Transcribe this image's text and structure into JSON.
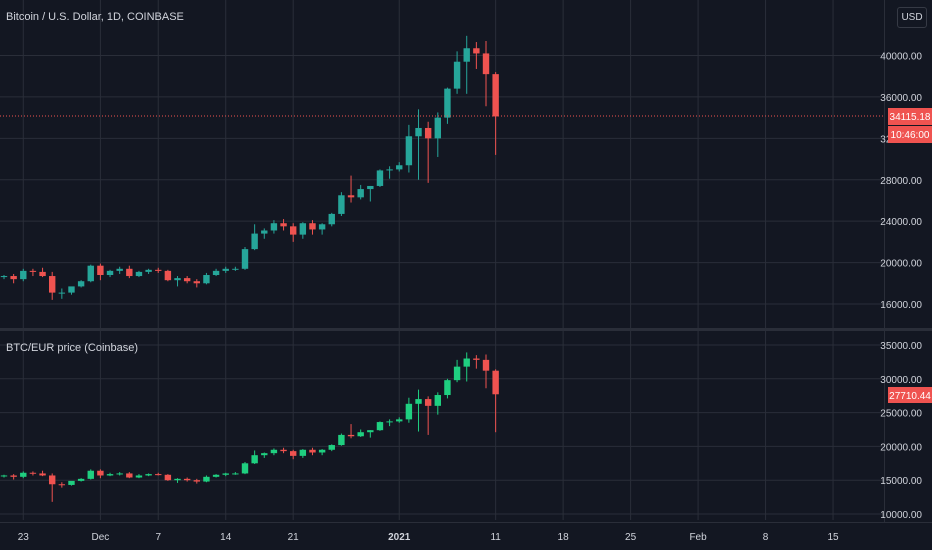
{
  "top_title": "Bitcoin / U.S. Dollar, 1D, COINBASE",
  "bottom_title": "BTC/EUR price (Coinbase)",
  "currency_button": "USD",
  "price_tag": "34115.18",
  "countdown_tag": "10:46:00",
  "eur_price_tag": "27710.44",
  "x_axis_labels": [
    "23",
    "Dec",
    "7",
    "14",
    "21",
    "2021",
    "11",
    "18",
    "25",
    "Feb",
    "8",
    "15"
  ],
  "colors": {
    "up": "#26a69a",
    "down": "#ef5350",
    "up_eur": "#1fcf80",
    "bg": "#131722",
    "grid": "#2a2e39",
    "text": "#d1d4dc"
  },
  "chart_data": [
    {
      "type": "candlestick",
      "title": "Bitcoin / U.S. Dollar, 1D, COINBASE",
      "ylim": [
        14000,
        44000
      ],
      "y_ticks": [
        16000,
        20000,
        24000,
        28000,
        32000,
        36000,
        40000
      ],
      "y_tick_labels": [
        "16000.00",
        "20000.00",
        "24000.00",
        "28000.00",
        "32000.00",
        "36000.00",
        "40000.00"
      ],
      "last_price": 34115.18,
      "x_range": [
        "2020-11-21",
        "2021-02-19"
      ],
      "dates": [
        "2020-11-21",
        "2020-11-22",
        "2020-11-23",
        "2020-11-24",
        "2020-11-25",
        "2020-11-26",
        "2020-11-27",
        "2020-11-28",
        "2020-11-29",
        "2020-11-30",
        "2020-12-01",
        "2020-12-02",
        "2020-12-03",
        "2020-12-04",
        "2020-12-05",
        "2020-12-06",
        "2020-12-07",
        "2020-12-08",
        "2020-12-09",
        "2020-12-10",
        "2020-12-11",
        "2020-12-12",
        "2020-12-13",
        "2020-12-14",
        "2020-12-15",
        "2020-12-16",
        "2020-12-17",
        "2020-12-18",
        "2020-12-19",
        "2020-12-20",
        "2020-12-21",
        "2020-12-22",
        "2020-12-23",
        "2020-12-24",
        "2020-12-25",
        "2020-12-26",
        "2020-12-27",
        "2020-12-28",
        "2020-12-29",
        "2020-12-30",
        "2020-12-31",
        "2021-01-01",
        "2021-01-02",
        "2021-01-03",
        "2021-01-04",
        "2021-01-05",
        "2021-01-06",
        "2021-01-07",
        "2021-01-08",
        "2021-01-09",
        "2021-01-10",
        "2021-01-11"
      ],
      "open": [
        18600,
        18700,
        18400,
        19200,
        19100,
        18700,
        17100,
        17100,
        17700,
        18200,
        19700,
        18800,
        19200,
        19400,
        18700,
        19100,
        19300,
        19200,
        18300,
        18500,
        18200,
        18000,
        18800,
        19200,
        19400,
        19400,
        21300,
        22800,
        23100,
        23800,
        23500,
        22700,
        23800,
        23200,
        23700,
        24700,
        26500,
        26300,
        27100,
        27400,
        28900,
        29000,
        29400,
        32200,
        33000,
        32000,
        34000,
        36800,
        39400,
        40700,
        40200,
        38200
      ],
      "high": [
        18800,
        18900,
        19400,
        19400,
        19500,
        19100,
        17500,
        17600,
        18300,
        19800,
        19900,
        19300,
        19600,
        19700,
        19200,
        19400,
        19500,
        19300,
        18700,
        18700,
        18400,
        19000,
        19400,
        19600,
        19600,
        21500,
        23700,
        23300,
        24100,
        24200,
        23800,
        23900,
        24100,
        23800,
        24800,
        26800,
        28400,
        27500,
        27400,
        29000,
        29300,
        29700,
        33300,
        34800,
        33600,
        34500,
        36900,
        40400,
        41900,
        41300,
        41400,
        38400
      ],
      "low": [
        18400,
        18000,
        18200,
        18700,
        18600,
        16400,
        16500,
        16900,
        17600,
        18100,
        18300,
        18600,
        18900,
        18500,
        18600,
        18900,
        19000,
        18200,
        17700,
        18000,
        17600,
        17900,
        18700,
        19000,
        19200,
        19300,
        21200,
        22300,
        22800,
        23100,
        22000,
        22300,
        22700,
        22700,
        23500,
        24500,
        25800,
        26100,
        25900,
        27300,
        28100,
        28800,
        28700,
        28000,
        27700,
        30200,
        33400,
        36300,
        36300,
        38700,
        35100,
        30400
      ],
      "close": [
        18700,
        18400,
        19200,
        19100,
        18700,
        17100,
        17100,
        17700,
        18200,
        19700,
        18800,
        19200,
        19400,
        18700,
        19100,
        19300,
        19200,
        18300,
        18500,
        18200,
        18000,
        18800,
        19200,
        19400,
        19400,
        21300,
        22800,
        23100,
        23800,
        23500,
        22700,
        23800,
        23200,
        23700,
        24700,
        26500,
        26300,
        27100,
        27400,
        28900,
        29000,
        29400,
        32200,
        33000,
        32000,
        34000,
        36800,
        39400,
        40700,
        40200,
        38200,
        34115
      ]
    },
    {
      "type": "candlestick",
      "title": "BTC/EUR price (Coinbase)",
      "ylim": [
        9000,
        36000
      ],
      "y_ticks": [
        10000,
        15000,
        20000,
        25000,
        30000,
        35000
      ],
      "y_tick_labels": [
        "10000.00",
        "15000.00",
        "20000.00",
        "25000.00",
        "30000.00",
        "35000.00"
      ],
      "last_price": 27710.44,
      "x_range": [
        "2020-11-21",
        "2021-02-19"
      ],
      "dates": [
        "2020-11-21",
        "2020-11-22",
        "2020-11-23",
        "2020-11-24",
        "2020-11-25",
        "2020-11-26",
        "2020-11-27",
        "2020-11-28",
        "2020-11-29",
        "2020-11-30",
        "2020-12-01",
        "2020-12-02",
        "2020-12-03",
        "2020-12-04",
        "2020-12-05",
        "2020-12-06",
        "2020-12-07",
        "2020-12-08",
        "2020-12-09",
        "2020-12-10",
        "2020-12-11",
        "2020-12-12",
        "2020-12-13",
        "2020-12-14",
        "2020-12-15",
        "2020-12-16",
        "2020-12-17",
        "2020-12-18",
        "2020-12-19",
        "2020-12-20",
        "2020-12-21",
        "2020-12-22",
        "2020-12-23",
        "2020-12-24",
        "2020-12-25",
        "2020-12-26",
        "2020-12-27",
        "2020-12-28",
        "2020-12-29",
        "2020-12-30",
        "2020-12-31",
        "2021-01-01",
        "2021-01-02",
        "2021-01-03",
        "2021-01-04",
        "2021-01-05",
        "2021-01-06",
        "2021-01-07",
        "2021-01-08",
        "2021-01-09",
        "2021-01-10",
        "2021-01-11"
      ],
      "open": [
        15600,
        15700,
        15500,
        16100,
        16000,
        15700,
        14400,
        14300,
        14900,
        15200,
        16400,
        15700,
        15900,
        16000,
        15400,
        15700,
        15900,
        15800,
        15000,
        15200,
        15000,
        14800,
        15500,
        15800,
        16000,
        16000,
        17500,
        18700,
        19000,
        19500,
        19300,
        18600,
        19500,
        19100,
        19500,
        20200,
        21700,
        21500,
        22100,
        22400,
        23600,
        23700,
        24000,
        26300,
        27000,
        26000,
        27600,
        29800,
        31800,
        33000,
        32800,
        31200
      ],
      "high": [
        15800,
        15900,
        16300,
        16300,
        16400,
        16000,
        14700,
        14800,
        15300,
        16600,
        16600,
        16100,
        16200,
        16200,
        15900,
        16000,
        16100,
        15900,
        15300,
        15400,
        15200,
        15700,
        15900,
        16100,
        16200,
        17700,
        19400,
        19100,
        19700,
        19800,
        19500,
        19600,
        19800,
        19600,
        20300,
        21900,
        23300,
        22500,
        22400,
        23700,
        24000,
        24300,
        27200,
        28400,
        27400,
        28000,
        30000,
        32800,
        33900,
        33500,
        33600,
        31400
      ],
      "low": [
        15400,
        15100,
        15300,
        15700,
        15600,
        11800,
        13900,
        14200,
        14800,
        15100,
        15300,
        15600,
        15700,
        15300,
        15300,
        15600,
        15700,
        14900,
        14600,
        14800,
        14500,
        14700,
        15400,
        15600,
        15800,
        15900,
        17400,
        18300,
        18700,
        19000,
        18100,
        18300,
        18700,
        18700,
        19300,
        20100,
        21200,
        21400,
        21300,
        22300,
        23000,
        23500,
        23500,
        22200,
        21700,
        24700,
        27100,
        29500,
        29600,
        31500,
        28600,
        22100
      ],
      "close": [
        15700,
        15500,
        16100,
        16000,
        15700,
        14400,
        14300,
        14900,
        15200,
        16400,
        15700,
        15900,
        16000,
        15400,
        15700,
        15900,
        15800,
        15000,
        15200,
        15000,
        14800,
        15500,
        15800,
        16000,
        16000,
        17500,
        18700,
        19000,
        19500,
        19300,
        18600,
        19500,
        19100,
        19500,
        20200,
        21700,
        21500,
        22100,
        22400,
        23600,
        23700,
        24000,
        26300,
        27000,
        26000,
        27600,
        29800,
        31800,
        33000,
        32800,
        31200,
        27710
      ]
    }
  ]
}
